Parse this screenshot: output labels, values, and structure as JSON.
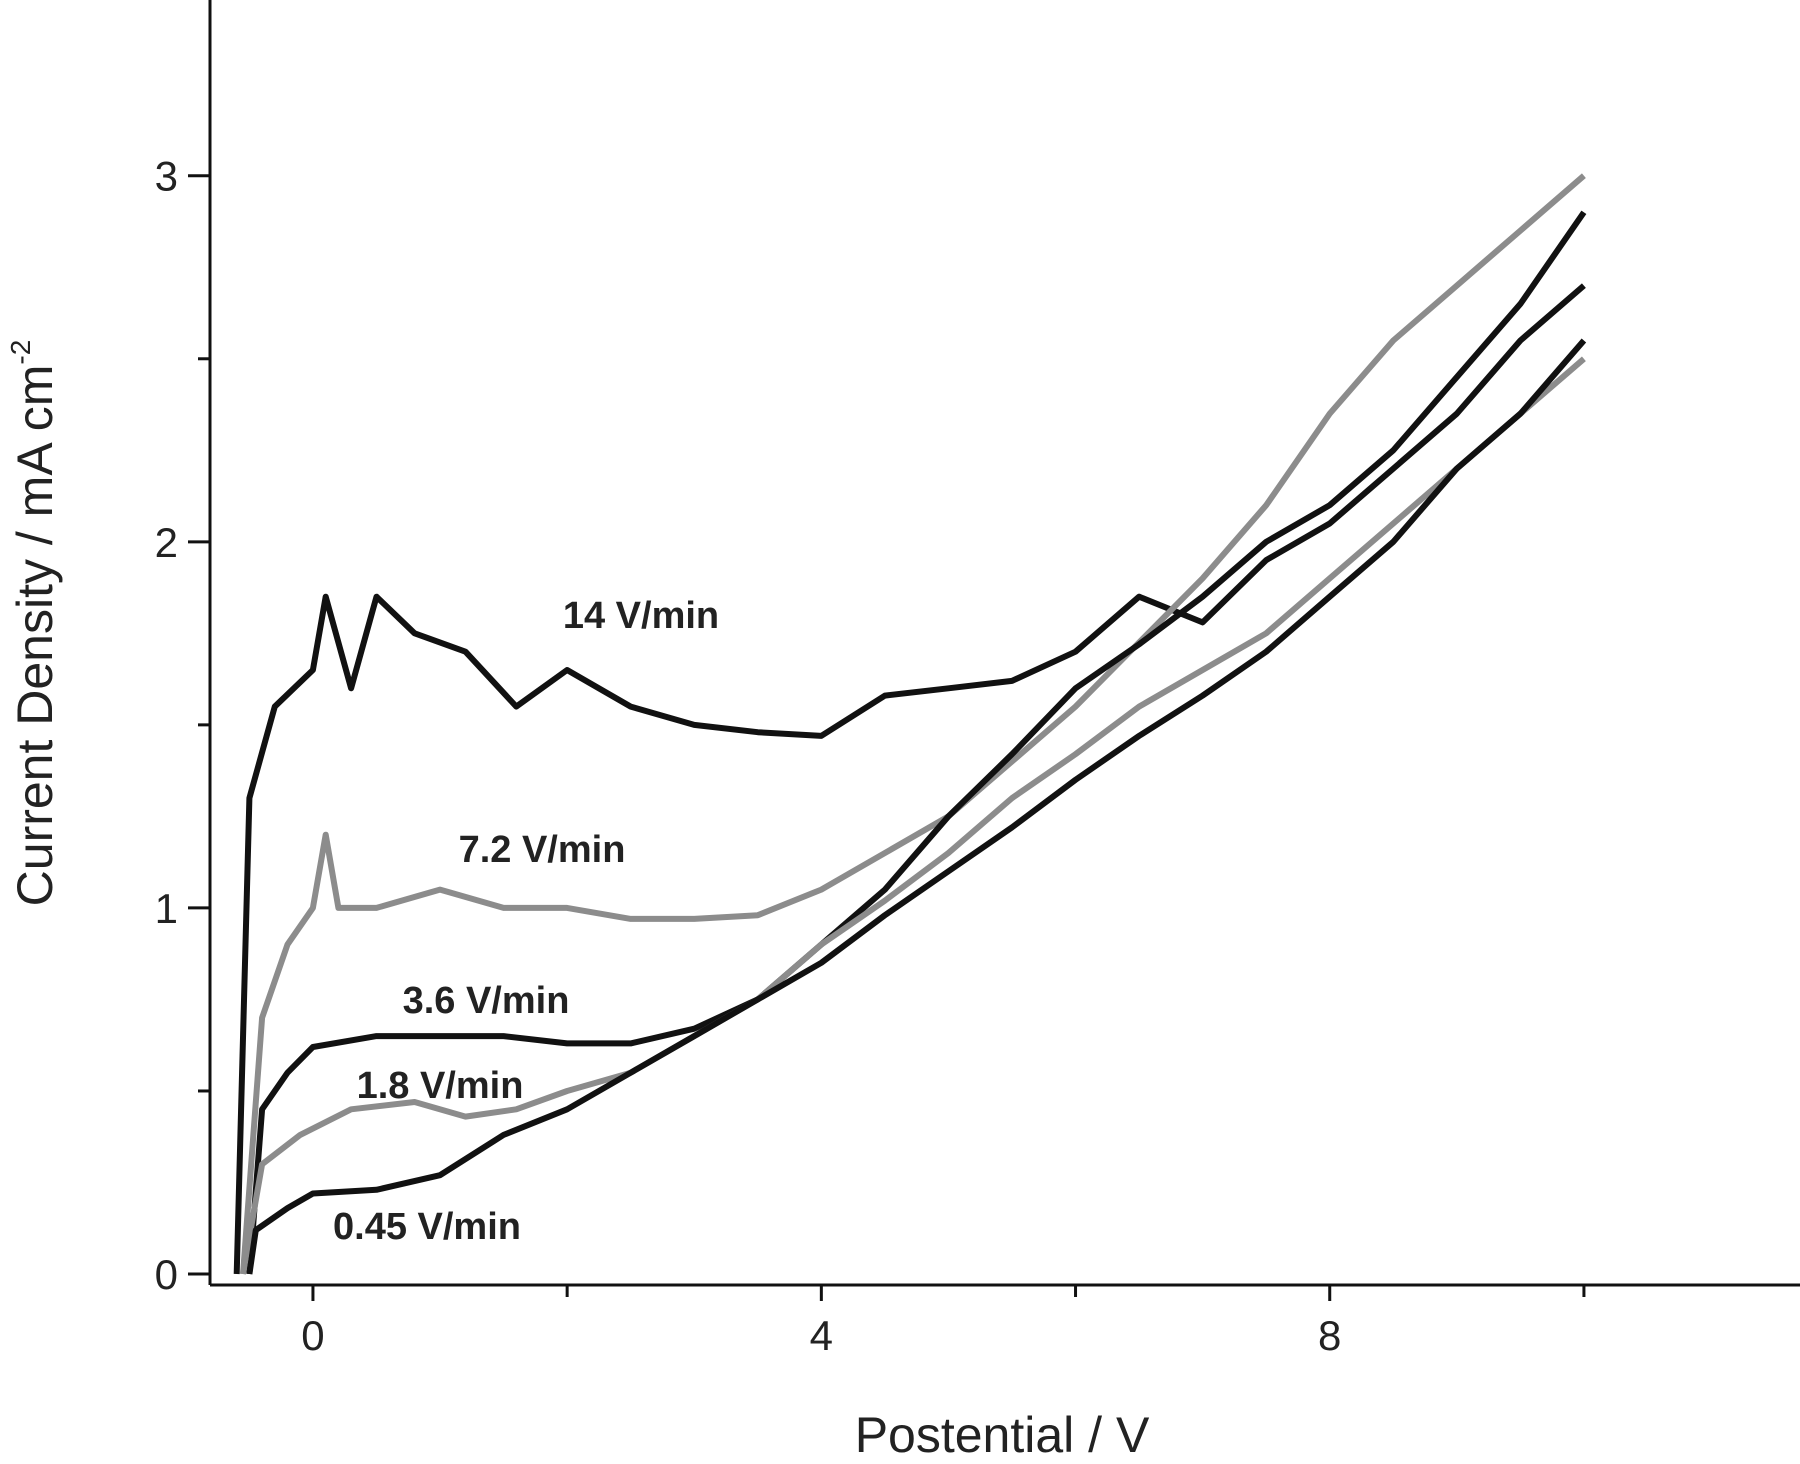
{
  "chart_data": {
    "type": "line",
    "xlabel": "Postential  / V",
    "ylabel": "Current Density / mA cm",
    "ylabel_superscript": "-2",
    "xlim": [
      -0.81,
      11.7
    ],
    "ylim": [
      -0.03,
      3.48
    ],
    "xticks": [
      0,
      4,
      8
    ],
    "yticks": [
      0,
      1,
      2,
      3
    ],
    "xminorticks": [
      2,
      6,
      10
    ],
    "yminorticks": [
      0.5,
      1.5,
      2.5
    ],
    "series": [
      {
        "name": "14 V/min",
        "color": "#111111",
        "x": [
          -0.6,
          -0.5,
          -0.3,
          0,
          0.1,
          0.3,
          0.5,
          0.8,
          1.2,
          1.6,
          2,
          2.5,
          3,
          3.5,
          4,
          4.5,
          5,
          5.5,
          6,
          6.5,
          7,
          7.5,
          8,
          8.5,
          9,
          9.5,
          10
        ],
        "values": [
          0,
          1.3,
          1.55,
          1.65,
          1.85,
          1.6,
          1.85,
          1.75,
          1.7,
          1.55,
          1.65,
          1.55,
          1.5,
          1.48,
          1.47,
          1.58,
          1.6,
          1.62,
          1.7,
          1.85,
          1.78,
          1.95,
          2.05,
          2.2,
          2.35,
          2.55,
          2.7
        ]
      },
      {
        "name": "7.2 V/min",
        "color": "#8c8c8c",
        "x": [
          -0.55,
          -0.4,
          -0.2,
          0,
          0.1,
          0.2,
          0.5,
          1,
          1.5,
          2,
          2.5,
          3,
          3.5,
          4,
          5,
          6,
          7,
          7.5,
          8,
          8.5,
          9,
          9.5,
          10
        ],
        "values": [
          0,
          0.7,
          0.9,
          1.0,
          1.2,
          1.0,
          1.0,
          1.05,
          1.0,
          1.0,
          0.97,
          0.97,
          0.98,
          1.05,
          1.25,
          1.55,
          1.9,
          2.1,
          2.35,
          2.55,
          2.7,
          2.85,
          3.0
        ]
      },
      {
        "name": "3.6 V/min",
        "color": "#111111",
        "x": [
          -0.5,
          -0.4,
          -0.2,
          0,
          0.5,
          1,
          1.5,
          2,
          2.5,
          3,
          3.5,
          4,
          4.5,
          5,
          5.5,
          6,
          6.5,
          7,
          7.5,
          8,
          8.5,
          9,
          9.5,
          10
        ],
        "values": [
          0,
          0.45,
          0.55,
          0.62,
          0.65,
          0.65,
          0.65,
          0.63,
          0.63,
          0.67,
          0.75,
          0.9,
          1.05,
          1.25,
          1.42,
          1.6,
          1.72,
          1.85,
          2.0,
          2.1,
          2.25,
          2.45,
          2.65,
          2.9
        ]
      },
      {
        "name": "1.8 V/min",
        "color": "#8c8c8c",
        "x": [
          -0.55,
          -0.4,
          -0.1,
          0.3,
          0.8,
          1.2,
          1.6,
          2,
          2.5,
          3,
          3.5,
          4,
          4.5,
          5,
          5.5,
          6,
          6.5,
          7,
          7.5,
          8,
          8.5,
          9,
          9.5,
          10
        ],
        "values": [
          0,
          0.3,
          0.38,
          0.45,
          0.47,
          0.43,
          0.45,
          0.5,
          0.55,
          0.65,
          0.75,
          0.9,
          1.02,
          1.15,
          1.3,
          1.42,
          1.55,
          1.65,
          1.75,
          1.9,
          2.05,
          2.2,
          2.35,
          2.5
        ]
      },
      {
        "name": "0.45 V/min",
        "color": "#111111",
        "x": [
          -0.5,
          -0.45,
          -0.2,
          0,
          0.5,
          1,
          1.5,
          2,
          2.5,
          3,
          3.5,
          4,
          4.5,
          5,
          5.5,
          6,
          6.5,
          7,
          7.5,
          8,
          8.5,
          9,
          9.5,
          10
        ],
        "values": [
          0,
          0.12,
          0.18,
          0.22,
          0.23,
          0.27,
          0.38,
          0.45,
          0.55,
          0.65,
          0.75,
          0.85,
          0.98,
          1.1,
          1.22,
          1.35,
          1.47,
          1.58,
          1.7,
          1.85,
          2.0,
          2.2,
          2.35,
          2.55
        ]
      }
    ]
  }
}
